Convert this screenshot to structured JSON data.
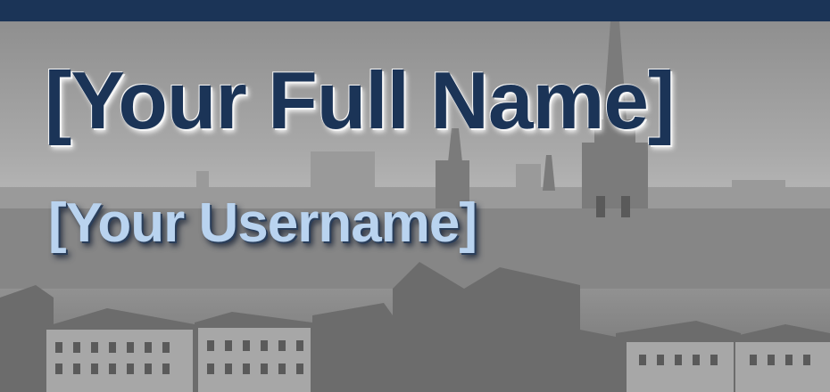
{
  "header": {
    "name_placeholder": "[Your Full Name]",
    "username_placeholder": "[Your Username]"
  },
  "colors": {
    "top_bar": "#1b3457",
    "name_text": "#1b3457",
    "username_text": "#b9d3ef"
  },
  "background": {
    "description_icon": "city-skyline-photo"
  }
}
